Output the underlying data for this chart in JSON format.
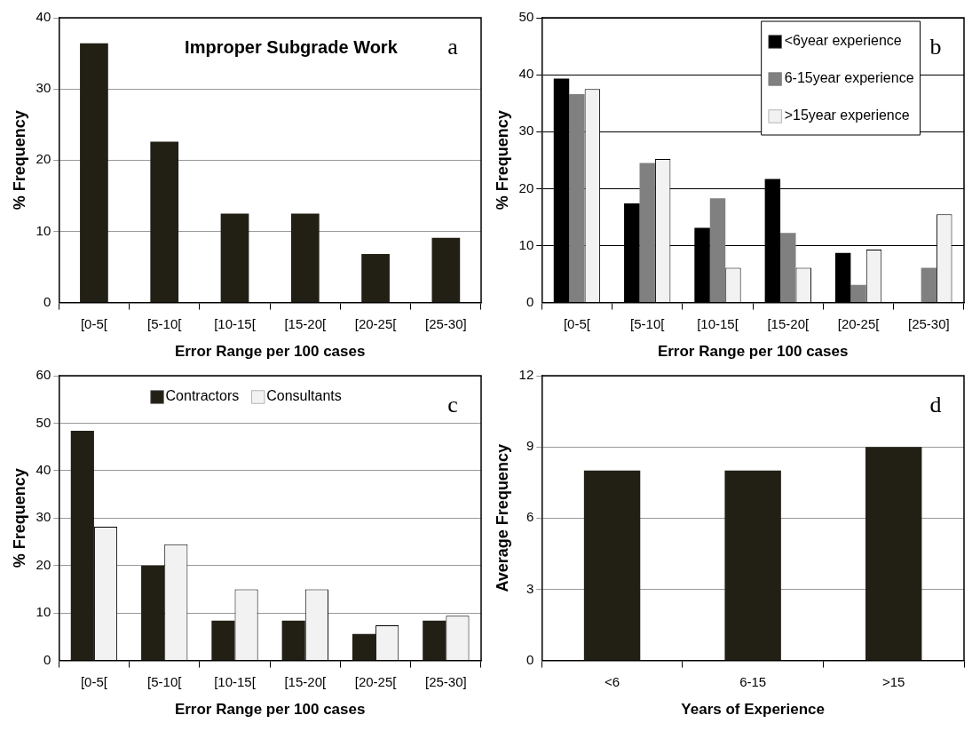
{
  "chart_data": [
    {
      "type": "bar",
      "title": "Improper Subgrade Work",
      "annotations": [
        "a"
      ],
      "xlabel": "Error Range per 100 cases",
      "ylabel": "% Frequency",
      "categories": [
        "[0-5[",
        "[5-10[",
        "[10-15[",
        "[15-20[",
        "[20-25[",
        "[25-30]"
      ],
      "values": [
        36.4,
        22.6,
        12.5,
        12.5,
        6.8,
        9.1
      ],
      "color": "#221f15",
      "ylim": [
        0,
        40
      ],
      "yticks": [
        0,
        10,
        20,
        30,
        40
      ],
      "grid": "y"
    },
    {
      "type": "bar",
      "annotations": [
        "b"
      ],
      "xlabel": "Error Range per 100 cases",
      "ylabel": "% Frequency",
      "categories": [
        "[0-5[",
        "[5-10[",
        "[10-15[",
        "[15-20[",
        "[20-25[",
        "[25-30]"
      ],
      "series": [
        {
          "name": "<6year experience",
          "color": "#000000",
          "values": [
            39.3,
            17.4,
            13.1,
            21.7,
            8.7,
            0
          ]
        },
        {
          "name": "6-15year experience",
          "color": "#808080",
          "values": [
            36.6,
            24.5,
            18.3,
            12.2,
            3.1,
            6.1
          ]
        },
        {
          "name": ">15year experience",
          "color": "#f2f2f2",
          "values": [
            37.5,
            25.2,
            6.1,
            6.1,
            9.3,
            15.5
          ]
        }
      ],
      "ylim": [
        0,
        50
      ],
      "yticks": [
        0,
        10,
        20,
        30,
        40,
        50
      ],
      "grid": "y",
      "legend": "top right"
    },
    {
      "type": "bar",
      "annotations": [
        "c"
      ],
      "xlabel": "Error Range per 100 cases",
      "ylabel": "% Frequency",
      "categories": [
        "[0-5[",
        "[5-10[",
        "[10-15[",
        "[15-20[",
        "[20-25[",
        "[25-30]"
      ],
      "series": [
        {
          "name": "Contractors",
          "color": "#221f15",
          "values": [
            48.4,
            20.0,
            8.4,
            8.4,
            5.6,
            8.4
          ]
        },
        {
          "name": "Consultants",
          "color": "#f2f2f2",
          "values": [
            28.2,
            24.5,
            15.0,
            15.0,
            7.4,
            9.4
          ]
        }
      ],
      "ylim": [
        0,
        60
      ],
      "yticks": [
        0,
        10,
        20,
        30,
        40,
        50,
        60
      ],
      "grid": "y",
      "legend": "top"
    },
    {
      "type": "bar",
      "annotations": [
        "d"
      ],
      "xlabel": "Years of Experience",
      "ylabel": "Average Frequency",
      "categories": [
        "<6",
        "6-15",
        ">15"
      ],
      "values": [
        8.0,
        8.0,
        9.0
      ],
      "color": "#221f15",
      "ylim": [
        0,
        12
      ],
      "yticks": [
        0,
        3,
        6,
        9,
        12
      ],
      "grid": "y"
    }
  ]
}
